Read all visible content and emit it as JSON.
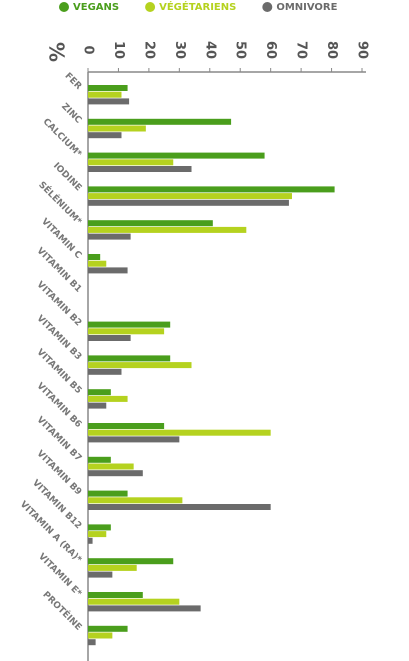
{
  "chart_data": {
    "type": "hbar",
    "categories": [
      "FER",
      "ZINC",
      "CALCIUM*",
      "IODINE",
      "SÉLÉNIUM*",
      "VITAMIN C",
      "VITAMIN B1",
      "VITAMIN B2",
      "VITAMIN B3",
      "VITAMIN B5",
      "VITAMIN B6",
      "VITAMIN B7",
      "VITAMIN B9",
      "VITAMIN B12",
      "VITAMIN A (RA)*",
      "VITAMIN E*",
      "PROTÉINE"
    ],
    "series": [
      {
        "name": "VEGANS",
        "color": "#4a9e1c",
        "values": [
          13,
          47,
          58,
          81,
          41,
          4,
          null,
          27,
          27,
          7.5,
          25,
          7.5,
          13,
          7.5,
          28,
          18,
          13
        ]
      },
      {
        "name": "VÉGÉTARIENS",
        "color": "#b5d21f",
        "values": [
          11,
          19,
          28,
          67,
          52,
          6,
          null,
          25,
          34,
          13,
          60,
          15,
          31,
          6,
          16,
          30,
          8
        ]
      },
      {
        "name": "OMNIVORE",
        "color": "#6b6b6b",
        "values": [
          13.5,
          11,
          34,
          66,
          14,
          13,
          null,
          14,
          11,
          6,
          30,
          18,
          60,
          1.5,
          8,
          37,
          2.5
        ]
      }
    ],
    "xlabel": "%",
    "xlim": [
      0,
      90
    ],
    "xticks": [
      0,
      10,
      20,
      30,
      40,
      50,
      60,
      70,
      80,
      90
    ]
  }
}
